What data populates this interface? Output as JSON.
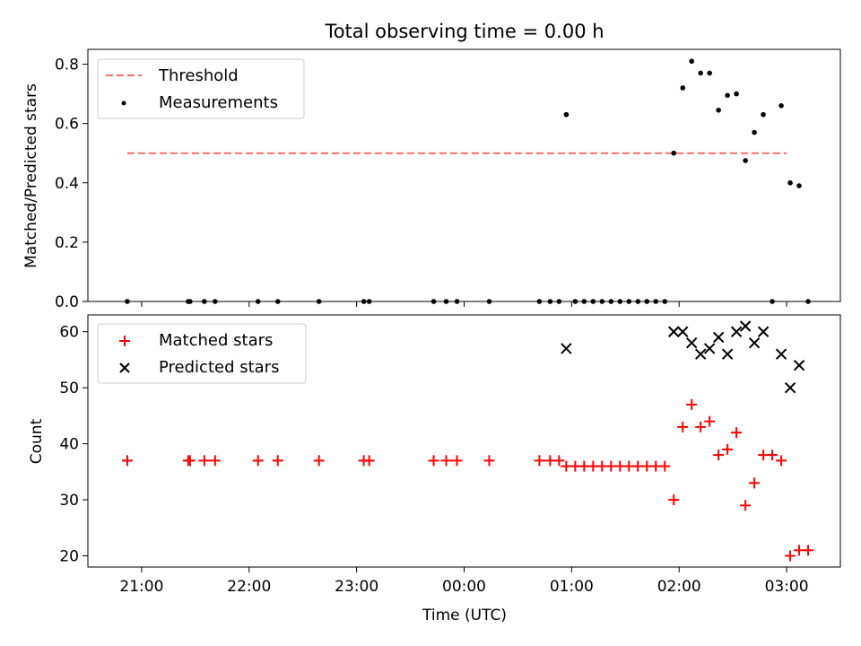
{
  "chart_data": [
    {
      "type": "scatter",
      "title": "Total observing time = 0.00 h",
      "xlabel": "",
      "ylabel": "Matched/Predicted stars",
      "ylim": [
        0,
        0.85
      ],
      "yticks": [
        "0.0",
        "0.2",
        "0.4",
        "0.6",
        "0.8"
      ],
      "ytick_values": [
        0,
        0.2,
        0.4,
        0.6,
        0.8
      ],
      "legend_placement": "upper-left",
      "threshold": {
        "name": "Threshold",
        "value": 0.5,
        "x_start": "20:52",
        "x_end": "03:00",
        "color": "#ff6b6b"
      },
      "series": [
        {
          "name": "Measurements",
          "marker": "dot",
          "color": "#000000",
          "x": [
            "20:52",
            "21:26",
            "21:27",
            "21:35",
            "21:41",
            "22:05",
            "22:16",
            "22:39",
            "23:04",
            "23:07",
            "23:43",
            "23:50",
            "23:56",
            "00:14",
            "00:42",
            "00:48",
            "00:53",
            "00:57",
            "01:02",
            "01:07",
            "01:12",
            "01:17",
            "01:22",
            "01:27",
            "01:32",
            "01:37",
            "01:42",
            "01:47",
            "01:52",
            "01:57",
            "02:02",
            "02:07",
            "02:12",
            "02:17",
            "02:22",
            "02:27",
            "02:32",
            "02:37",
            "02:42",
            "02:47",
            "02:52",
            "02:57",
            "03:02",
            "03:07"
          ],
          "y": [
            0,
            0,
            0,
            0,
            0,
            0,
            0,
            0,
            0,
            0,
            0,
            0,
            0,
            0,
            0,
            0,
            0,
            0.63,
            0,
            0,
            0,
            0,
            0,
            0,
            0,
            0,
            0,
            0,
            0,
            0.5,
            0.72,
            0.81,
            0.77,
            0.77,
            0.645,
            0.695,
            0.7,
            0.475,
            0.57,
            0.63,
            0,
            0.66,
            0.4,
            0.39
          ]
        }
      ]
    },
    {
      "type": "scatter",
      "title": "",
      "xlabel": "Time (UTC)",
      "ylabel": "Count",
      "ylim": [
        18,
        63
      ],
      "yticks": [
        "20",
        "30",
        "40",
        "50",
        "60"
      ],
      "ytick_values": [
        20,
        30,
        40,
        50,
        60
      ],
      "legend_placement": "upper-left",
      "series": [
        {
          "name": "Matched stars",
          "marker": "plus",
          "color": "#ff0000",
          "x": [
            "20:52",
            "21:26",
            "21:27",
            "21:35",
            "21:41",
            "22:05",
            "22:16",
            "22:39",
            "23:04",
            "23:07",
            "23:43",
            "23:50",
            "23:56",
            "00:14",
            "00:42",
            "00:48",
            "00:53",
            "00:57",
            "01:02",
            "01:07",
            "01:12",
            "01:17",
            "01:22",
            "01:27",
            "01:32",
            "01:37",
            "01:42",
            "01:47",
            "01:52",
            "01:57",
            "02:02",
            "02:07",
            "02:12",
            "02:17",
            "02:22",
            "02:27",
            "02:32",
            "02:37",
            "02:42",
            "02:47",
            "02:52",
            "02:57",
            "03:02",
            "03:07"
          ],
          "y": [
            37,
            37,
            37,
            37,
            37,
            37,
            37,
            37,
            37,
            37,
            37,
            37,
            37,
            37,
            37,
            37,
            37,
            36,
            36,
            36,
            36,
            36,
            36,
            36,
            36,
            36,
            36,
            36,
            36,
            30,
            43,
            47,
            43,
            44,
            38,
            39,
            42,
            29,
            33,
            38,
            38,
            37,
            20,
            21
          ]
        },
        {
          "name": "Predicted stars",
          "marker": "x",
          "color": "#000000",
          "x": [
            "00:57",
            "01:57",
            "02:02",
            "02:07",
            "02:12",
            "02:17",
            "02:22",
            "02:27",
            "02:32",
            "02:37",
            "02:42",
            "02:47",
            "02:57",
            "03:02",
            "03:07"
          ],
          "y": [
            57,
            60,
            60,
            58,
            56,
            57,
            59,
            56,
            60,
            61,
            58,
            60,
            56,
            50,
            54
          ]
        }
      ]
    }
  ],
  "x_axis": {
    "ticks": [
      "21:00",
      "22:00",
      "23:00",
      "00:00",
      "01:00",
      "02:00",
      "03:00"
    ],
    "range": [
      "20:30",
      "03:30"
    ]
  },
  "extra_points": {
    "top_x": [
      "03:12"
    ],
    "top_y": [
      0
    ],
    "bottom_x": [
      "03:12"
    ],
    "bottom_y": [
      21
    ]
  }
}
